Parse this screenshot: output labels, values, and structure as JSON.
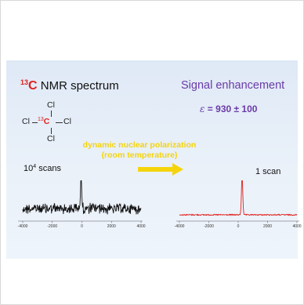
{
  "left": {
    "title_sup": "13",
    "title_c": "C",
    "title_rest": " NMR spectrum",
    "molecule": {
      "top": "Cl",
      "left": "Cl",
      "center_sup": "13",
      "center": "C",
      "right": "Cl",
      "bottom": "Cl"
    },
    "scans_base": "10",
    "scans_exp": "4",
    "scans_rest": " scans"
  },
  "right": {
    "title": "Signal enhancement",
    "enh_symbol": "ε",
    "enh_text": "= 930 ± 100",
    "scans": "1 scan"
  },
  "method": {
    "line1": "dynamic nuclear polarization",
    "line2": "(room temperature)"
  },
  "colors": {
    "panel_bg": "#e4edf8",
    "red_accent": "#e0201c",
    "purple": "#6a3aa8",
    "arrow_yellow": "#f5d40c",
    "left_trace": "#111111",
    "right_trace": "#e0201c"
  },
  "chart_data": [
    {
      "type": "line",
      "series": [
        {
          "values": "noisy baseline with single peak at 0"
        }
      ],
      "xlim": [
        -4000,
        4000
      ],
      "tick_labels": [
        "-4000",
        "-2000",
        "0",
        "2000",
        "4000"
      ]
    },
    {
      "type": "line",
      "series": [
        {
          "values": "flat baseline with sharp peak at 0"
        }
      ],
      "xlim": [
        -4000,
        4000
      ],
      "tick_labels": [
        "-4000",
        "-2000",
        "0",
        "2000",
        "4000"
      ]
    }
  ]
}
